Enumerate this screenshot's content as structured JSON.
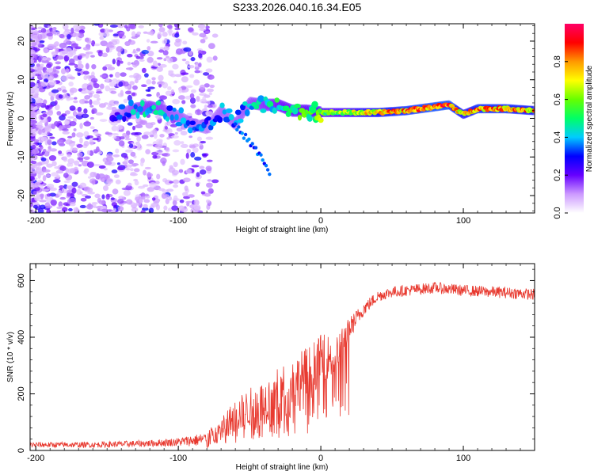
{
  "title": "S233.2026.040.16.34.E05",
  "chart_data": [
    {
      "type": "heatmap",
      "xlabel": "Height of straight line (km)",
      "ylabel": "Frequency (Hz)",
      "xlim": [
        -204,
        150
      ],
      "ylim": [
        -24.5,
        24.5
      ],
      "xticks": [
        -200,
        -100,
        0,
        100
      ],
      "yticks": [
        -20,
        -10,
        0,
        10,
        20
      ],
      "colorbar": {
        "label": "Normalized spectral amplitude",
        "range": [
          0,
          1
        ],
        "ticks": [
          "0.0",
          "0.2",
          "0.4",
          "0.6",
          "0.8"
        ],
        "colors": [
          "#ffffff",
          "#cc99ff",
          "#6600ff",
          "#0000ff",
          "#00ccff",
          "#00ff66",
          "#66ff00",
          "#ffff00",
          "#ff9900",
          "#ff0000",
          "#ff0066"
        ]
      },
      "ridge": {
        "x": [
          -145,
          -130,
          -120,
          -110,
          -100,
          -90,
          -80,
          -70,
          -60,
          -50,
          -40,
          -30,
          -20,
          -10,
          0,
          10,
          20,
          40,
          60,
          80,
          90,
          100,
          110,
          130,
          150
        ],
        "y": [
          0.5,
          2.5,
          3.0,
          2.0,
          0.5,
          -1.5,
          -2.5,
          2.0,
          -1.5,
          4.0,
          3.5,
          3.5,
          2.0,
          2.0,
          1.5,
          1.5,
          1.5,
          1.5,
          2.0,
          3.0,
          3.5,
          1.0,
          2.5,
          2.5,
          2.0
        ],
        "amplitude": [
          0.3,
          0.45,
          0.5,
          0.45,
          0.4,
          0.4,
          0.35,
          0.4,
          0.4,
          0.45,
          0.5,
          0.55,
          0.6,
          0.6,
          0.65,
          0.65,
          0.7,
          0.85,
          0.9,
          0.95,
          0.95,
          0.8,
          0.9,
          0.9,
          0.85
        ]
      },
      "branch": {
        "x": [
          -60,
          -50,
          -40,
          -35
        ],
        "y": [
          -2,
          -6,
          -11,
          -15.5
        ]
      }
    },
    {
      "type": "line",
      "xlabel": "Height of straight line (km)",
      "ylabel": "SNR (10 * v/v)",
      "xlim": [
        -204,
        150
      ],
      "ylim": [
        0,
        660
      ],
      "xticks": [
        -200,
        -100,
        0,
        100
      ],
      "yticks": [
        0,
        200,
        400,
        600
      ],
      "color": "#e83a30",
      "series": [
        {
          "name": "SNR",
          "x": [
            -204,
            -160,
            -120,
            -100,
            -90,
            -80,
            -70,
            -60,
            -50,
            -40,
            -30,
            -20,
            -10,
            0,
            10,
            20,
            30,
            40,
            50,
            60,
            80,
            100,
            120,
            140,
            150
          ],
          "y": [
            20,
            20,
            25,
            30,
            35,
            40,
            80,
            120,
            150,
            170,
            200,
            230,
            260,
            330,
            330,
            430,
            500,
            545,
            560,
            565,
            575,
            565,
            560,
            555,
            550
          ],
          "noise": [
            10,
            10,
            12,
            15,
            20,
            25,
            40,
            60,
            70,
            80,
            90,
            100,
            110,
            80,
            80,
            40,
            25,
            20,
            20,
            20,
            20,
            20,
            20,
            20,
            20
          ]
        }
      ]
    }
  ]
}
